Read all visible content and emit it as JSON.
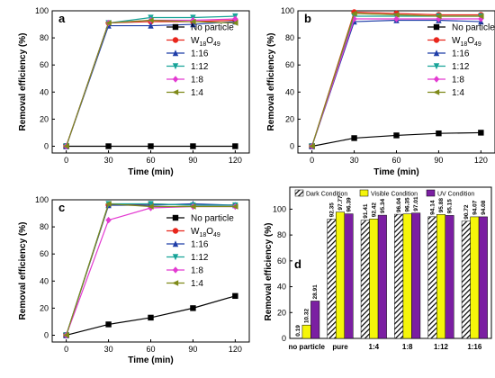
{
  "chart_data": [
    {
      "panel": "a",
      "type": "line",
      "xlabel": "Time (min)",
      "ylabel": "Removal efficiency (%)",
      "xlim": [
        -10,
        130
      ],
      "ylim": [
        -5,
        100
      ],
      "xticks": [
        "0",
        "30",
        "60",
        "90",
        "120"
      ],
      "yticks": [
        "0",
        "20",
        "40",
        "60",
        "80",
        "100"
      ],
      "legend_position": "right",
      "series": [
        {
          "name": "No particle",
          "color": "#000000",
          "marker": "square",
          "x": [
            0,
            30,
            60,
            90,
            120
          ],
          "y": [
            0,
            0,
            0,
            0,
            0
          ]
        },
        {
          "name": "W18O49",
          "color": "#e8261c",
          "marker": "circle",
          "x": [
            0,
            30,
            60,
            90,
            120
          ],
          "y": [
            0,
            91,
            92,
            92,
            93
          ]
        },
        {
          "name": "1:16",
          "color": "#1f3ea8",
          "marker": "triangle-up",
          "x": [
            0,
            30,
            60,
            90,
            120
          ],
          "y": [
            0,
            89,
            89,
            90,
            92
          ]
        },
        {
          "name": "1:12",
          "color": "#17a398",
          "marker": "triangle-down",
          "x": [
            0,
            30,
            60,
            90,
            120
          ],
          "y": [
            0,
            91,
            95,
            95,
            96
          ]
        },
        {
          "name": "1:8",
          "color": "#e33ad1",
          "marker": "diamond",
          "x": [
            0,
            30,
            60,
            90,
            120
          ],
          "y": [
            0,
            91,
            93,
            93,
            94
          ]
        },
        {
          "name": "1:4",
          "color": "#7f8a1a",
          "marker": "triangle-left",
          "x": [
            0,
            30,
            60,
            90,
            120
          ],
          "y": [
            0,
            91,
            93,
            92,
            91
          ]
        }
      ]
    },
    {
      "panel": "b",
      "type": "line",
      "xlabel": "Time (min)",
      "ylabel": "Removal efficiency (%)",
      "xlim": [
        -10,
        130
      ],
      "ylim": [
        -5,
        100
      ],
      "xticks": [
        "0",
        "30",
        "60",
        "90",
        "120"
      ],
      "yticks": [
        "0",
        "20",
        "40",
        "60",
        "80",
        "100"
      ],
      "legend_position": "right",
      "series": [
        {
          "name": "No particle",
          "color": "#000000",
          "marker": "square",
          "x": [
            0,
            30,
            60,
            90,
            120
          ],
          "y": [
            0,
            6,
            8,
            9.5,
            10
          ]
        },
        {
          "name": "W18O49",
          "color": "#e8261c",
          "marker": "circle",
          "x": [
            0,
            30,
            60,
            90,
            120
          ],
          "y": [
            0,
            99,
            98,
            97,
            97
          ]
        },
        {
          "name": "1:16",
          "color": "#1f3ea8",
          "marker": "triangle-up",
          "x": [
            0,
            30,
            60,
            90,
            120
          ],
          "y": [
            0,
            92,
            93,
            93,
            92
          ]
        },
        {
          "name": "1:12",
          "color": "#17a398",
          "marker": "triangle-down",
          "x": [
            0,
            30,
            60,
            90,
            120
          ],
          "y": [
            0,
            96,
            96,
            96,
            96
          ]
        },
        {
          "name": "1:8",
          "color": "#e33ad1",
          "marker": "diamond",
          "x": [
            0,
            30,
            60,
            90,
            120
          ],
          "y": [
            0,
            94,
            94,
            94,
            94
          ]
        },
        {
          "name": "1:4",
          "color": "#7f8a1a",
          "marker": "triangle-left",
          "x": [
            0,
            30,
            60,
            90,
            120
          ],
          "y": [
            0,
            98,
            97,
            96,
            96
          ]
        }
      ]
    },
    {
      "panel": "c",
      "type": "line",
      "xlabel": "Time (min)",
      "ylabel": "Removal efficiency (%)",
      "xlim": [
        -10,
        130
      ],
      "ylim": [
        -5,
        100
      ],
      "xticks": [
        "0",
        "30",
        "60",
        "90",
        "120"
      ],
      "yticks": [
        "0",
        "20",
        "40",
        "60",
        "80",
        "100"
      ],
      "legend_position": "right",
      "series": [
        {
          "name": "No particle",
          "color": "#000000",
          "marker": "square",
          "x": [
            0,
            30,
            60,
            90,
            120
          ],
          "y": [
            0,
            8,
            13,
            20,
            29
          ]
        },
        {
          "name": "W18O49",
          "color": "#e8261c",
          "marker": "circle",
          "x": [
            0,
            30,
            60,
            90,
            120
          ],
          "y": [
            0,
            96,
            97,
            96,
            96
          ]
        },
        {
          "name": "1:16",
          "color": "#1f3ea8",
          "marker": "triangle-up",
          "x": [
            0,
            30,
            60,
            90,
            120
          ],
          "y": [
            0,
            96,
            96,
            97,
            96
          ]
        },
        {
          "name": "1:12",
          "color": "#17a398",
          "marker": "triangle-down",
          "x": [
            0,
            30,
            60,
            90,
            120
          ],
          "y": [
            0,
            97,
            97,
            96,
            96
          ]
        },
        {
          "name": "1:8",
          "color": "#e33ad1",
          "marker": "diamond",
          "x": [
            0,
            30,
            60,
            90,
            120
          ],
          "y": [
            0,
            85,
            94,
            95,
            95
          ]
        },
        {
          "name": "1:4",
          "color": "#7f8a1a",
          "marker": "triangle-left",
          "x": [
            0,
            30,
            60,
            90,
            120
          ],
          "y": [
            0,
            97,
            95,
            95,
            95
          ]
        }
      ]
    },
    {
      "panel": "d",
      "type": "bar",
      "ylabel": "Removal efficiency (%)",
      "ylim": [
        0,
        117
      ],
      "yticks": [
        "0",
        "20",
        "40",
        "60",
        "80",
        "100"
      ],
      "categories": [
        "no particle",
        "pure",
        "1:4",
        "1:8",
        "1:12",
        "1:16"
      ],
      "legend_position": "top",
      "series": [
        {
          "name": "Dark Condition",
          "color": "#222222",
          "pattern": "hatch",
          "values": [
            0.19,
            92.35,
            91.41,
            96.04,
            94.14,
            90.72
          ],
          "labels": [
            "0.19",
            "92.35",
            "91.41",
            "96.04",
            "94.14",
            "90.72"
          ]
        },
        {
          "name": "Visible Condition",
          "color": "#f5f50a",
          "values": [
            10.32,
            97.77,
            92.42,
            96.35,
            95.88,
            94.07
          ],
          "labels": [
            "10.32",
            "97.77",
            "92.42",
            "96.35",
            "95.88",
            "94.07"
          ]
        },
        {
          "name": "UV Condition",
          "color": "#7b1fa2",
          "values": [
            28.91,
            96.39,
            95.34,
            97.01,
            95.15,
            94.08
          ],
          "labels": [
            "28.91",
            "96.39",
            "95.34",
            "97.01",
            "95.15",
            "94.08"
          ]
        }
      ]
    }
  ]
}
